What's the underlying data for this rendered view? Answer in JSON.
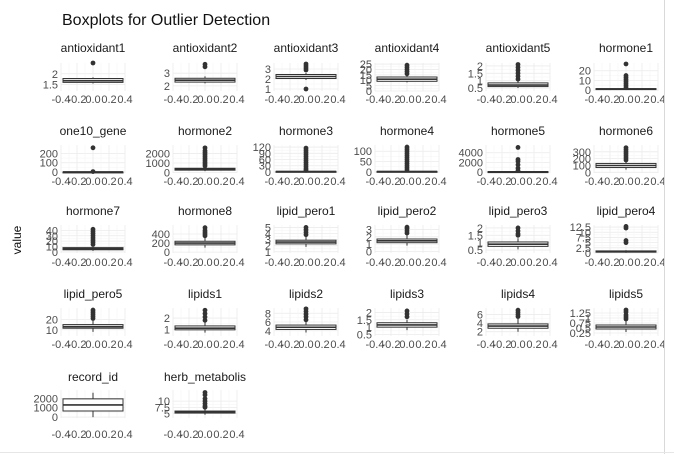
{
  "chart_data": {
    "type": "boxplot",
    "title": "Boxplots for Outlier Detection",
    "xlabel": "",
    "ylabel": "value",
    "x_ticks": [
      "-0.4",
      "-0.2",
      "0.0",
      "0.2",
      "0.4"
    ],
    "xlim": [
      -0.4,
      0.4
    ],
    "grid": true,
    "panels": [
      {
        "name": "antioxidant1",
        "ylim": [
          1.2,
          2.5
        ],
        "y_ticks": [
          1.5,
          2.0
        ],
        "box": [
          1.6,
          1.68,
          1.78
        ],
        "whiskers": [
          1.55,
          1.83
        ],
        "outliers": [
          2.5
        ]
      },
      {
        "name": "antioxidant2",
        "ylim": [
          1.6,
          3.8
        ],
        "y_ticks": [
          2,
          3
        ],
        "box": [
          2.3,
          2.45,
          2.6
        ],
        "whiskers": [
          2.2,
          2.75
        ],
        "outliers": [
          3.5,
          3.7
        ]
      },
      {
        "name": "antioxidant3",
        "ylim": [
          0.8,
          3.6
        ],
        "y_ticks": [
          1,
          2,
          3
        ],
        "box": [
          2.05,
          2.25,
          2.45
        ],
        "whiskers": [
          1.9,
          2.6
        ],
        "outliers": [
          1.0,
          2.9,
          3.1,
          3.3,
          3.5
        ]
      },
      {
        "name": "antioxidant4",
        "ylim": [
          0,
          26
        ],
        "y_ticks": [
          0,
          5,
          10,
          15,
          20,
          25
        ],
        "box": [
          9,
          11,
          13
        ],
        "whiskers": [
          8,
          15
        ],
        "outliers": [
          16,
          18,
          20,
          22,
          24
        ]
      },
      {
        "name": "antioxidant5",
        "ylim": [
          0.3,
          2.2
        ],
        "y_ticks": [
          0.5,
          1.0,
          1.5,
          2.0
        ],
        "box": [
          0.6,
          0.7,
          0.85
        ],
        "whiskers": [
          0.5,
          1.0
        ],
        "outliers": [
          1.1,
          1.3,
          1.5,
          1.7,
          1.9,
          2.1
        ]
      },
      {
        "name": "hormone1",
        "ylim": [
          -1,
          28
        ],
        "y_ticks": [
          0,
          10,
          20
        ],
        "box": [
          0.5,
          1,
          1.5
        ],
        "whiskers": [
          0,
          2
        ],
        "outliers": [
          3,
          5,
          7,
          9,
          11,
          13,
          15,
          27
        ]
      },
      {
        "name": "one10_gene",
        "ylim": [
          -10,
          290
        ],
        "y_ticks": [
          0,
          100,
          200
        ],
        "box": [
          0.5,
          1,
          1.5
        ],
        "whiskers": [
          0,
          2
        ],
        "outliers": [
          5,
          260
        ]
      },
      {
        "name": "hormone2",
        "ylim": [
          -50,
          2900
        ],
        "y_ticks": [
          0,
          1000,
          2000
        ],
        "box": [
          250,
          350,
          450
        ],
        "whiskers": [
          150,
          550
        ],
        "outliers": [
          700,
          900,
          1100,
          1300,
          1500,
          1700,
          1900,
          2100,
          2300,
          2600
        ]
      },
      {
        "name": "hormone3",
        "ylim": [
          -5,
          130
        ],
        "y_ticks": [
          0,
          30,
          60,
          90,
          120
        ],
        "box": [
          1,
          2,
          3
        ],
        "whiskers": [
          0,
          5
        ],
        "outliers": [
          8,
          15,
          25,
          35,
          45,
          55,
          65,
          75,
          85,
          95,
          105,
          115
        ]
      },
      {
        "name": "hormone4",
        "ylim": [
          -5,
          130
        ],
        "y_ticks": [
          0,
          50,
          100
        ],
        "box": [
          1,
          2,
          3
        ],
        "whiskers": [
          0,
          5
        ],
        "outliers": [
          10,
          20,
          30,
          40,
          50,
          60,
          70,
          80,
          90,
          100,
          110,
          120
        ]
      },
      {
        "name": "hormone5",
        "ylim": [
          -200,
          5600
        ],
        "y_ticks": [
          0,
          2000,
          4000
        ],
        "box": [
          20,
          50,
          90
        ],
        "whiskers": [
          0,
          150
        ],
        "outliers": [
          300,
          800,
          1500,
          2200,
          2600,
          5100
        ]
      },
      {
        "name": "hormone6",
        "ylim": [
          -10,
          400
        ],
        "y_ticks": [
          0,
          100,
          200,
          300
        ],
        "box": [
          70,
          100,
          130
        ],
        "whiskers": [
          40,
          160
        ],
        "outliers": [
          180,
          210,
          240,
          270,
          300,
          330,
          360
        ]
      },
      {
        "name": "hormone7",
        "ylim": [
          -2,
          50
        ],
        "y_ticks": [
          0,
          10,
          20,
          30,
          40
        ],
        "box": [
          4,
          6,
          8
        ],
        "whiskers": [
          2,
          12
        ],
        "outliers": [
          14,
          18,
          22,
          26,
          30,
          34,
          38,
          42
        ]
      },
      {
        "name": "hormone8",
        "ylim": [
          -20,
          600
        ],
        "y_ticks": [
          0,
          200,
          400
        ],
        "box": [
          160,
          200,
          240
        ],
        "whiskers": [
          100,
          320
        ],
        "outliers": [
          360,
          400,
          440,
          480,
          540
        ]
      },
      {
        "name": "lipid_pero1",
        "ylim": [
          0.8,
          5.4
        ],
        "y_ticks": [
          1,
          2,
          3,
          4,
          5
        ],
        "box": [
          2.3,
          2.6,
          2.9
        ],
        "whiskers": [
          1.8,
          3.5
        ],
        "outliers": [
          3.8,
          4.2,
          4.6,
          5.0
        ]
      },
      {
        "name": "lipid_pero2",
        "ylim": [
          -0.2,
          3.6
        ],
        "y_ticks": [
          0,
          1,
          2,
          3
        ],
        "box": [
          1.2,
          1.45,
          1.7
        ],
        "whiskers": [
          0.8,
          2.2
        ],
        "outliers": [
          2.5,
          2.8,
          3.1,
          3.3
        ]
      },
      {
        "name": "lipid_pero3",
        "ylim": [
          0.3,
          2.2
        ],
        "y_ticks": [
          0.5,
          1.0,
          1.5,
          2.0
        ],
        "box": [
          0.75,
          0.9,
          1.05
        ],
        "whiskers": [
          0.55,
          1.3
        ],
        "outliers": [
          1.5,
          1.6,
          1.8,
          2.0
        ]
      },
      {
        "name": "lipid_pero4",
        "ylim": [
          0,
          13.5
        ],
        "y_ticks": [
          0,
          2.5,
          5.0,
          7.5,
          10.0,
          12.5
        ],
        "box": [
          0.4,
          0.7,
          1.0
        ],
        "whiskers": [
          0.1,
          1.3
        ],
        "outliers": [
          5.0,
          6.0,
          12.0,
          12.8
        ]
      },
      {
        "name": "lipid_pero5",
        "ylim": [
          4,
          31
        ],
        "y_ticks": [
          10,
          20
        ],
        "box": [
          11.5,
          13,
          15
        ],
        "whiskers": [
          8,
          19
        ],
        "outliers": [
          21,
          23,
          25,
          27,
          29
        ]
      },
      {
        "name": "lipids1",
        "ylim": [
          0.4,
          2.9
        ],
        "y_ticks": [
          1,
          2
        ],
        "box": [
          0.95,
          1.1,
          1.3
        ],
        "whiskers": [
          0.7,
          1.6
        ],
        "outliers": [
          1.8,
          2.1,
          2.4,
          2.7
        ]
      },
      {
        "name": "lipids2",
        "ylim": [
          2.8,
          9.2
        ],
        "y_ticks": [
          4,
          6,
          8
        ],
        "box": [
          4.3,
          4.8,
          5.3
        ],
        "whiskers": [
          3.6,
          6.0
        ],
        "outliers": [
          6.5,
          7.2,
          7.8,
          8.4,
          9.0
        ]
      },
      {
        "name": "lipids3",
        "ylim": [
          0.4,
          2.3
        ],
        "y_ticks": [
          0.5,
          1.0,
          1.5,
          2.0
        ],
        "box": [
          1.0,
          1.15,
          1.3
        ],
        "whiskers": [
          0.8,
          1.5
        ],
        "outliers": [
          1.7,
          1.9,
          2.1
        ]
      },
      {
        "name": "lipids4",
        "ylim": [
          1.0,
          7.5
        ],
        "y_ticks": [
          2,
          4,
          6
        ],
        "box": [
          2.8,
          3.3,
          3.8
        ],
        "whiskers": [
          2.0,
          5.0
        ],
        "outliers": [
          5.5,
          6.0,
          6.5,
          7.0
        ]
      },
      {
        "name": "lipids5",
        "ylim": [
          0.1,
          1.5
        ],
        "y_ticks": [
          0.25,
          0.5,
          0.75,
          1.0,
          1.25
        ],
        "box": [
          0.45,
          0.55,
          0.65
        ],
        "whiskers": [
          0.3,
          0.85
        ],
        "outliers": [
          0.95,
          1.05,
          1.15,
          1.3,
          1.4
        ]
      },
      {
        "name": "record_id",
        "ylim": [
          -100,
          2900
        ],
        "y_ticks": [
          0,
          1000,
          2000
        ],
        "box": [
          650,
          1300,
          1950
        ],
        "whiskers": [
          0,
          2600
        ],
        "outliers": []
      },
      {
        "name": "herb_metabolis",
        "ylim": [
          3.2,
          14.5
        ],
        "y_ticks": [
          5.0,
          7.5,
          10.0
        ],
        "box": [
          5.2,
          5.6,
          6.0
        ],
        "whiskers": [
          4.5,
          7.2
        ],
        "outliers": [
          7.5,
          8.0,
          9.0,
          10.0,
          11.0,
          12.5,
          13.5
        ]
      }
    ]
  }
}
